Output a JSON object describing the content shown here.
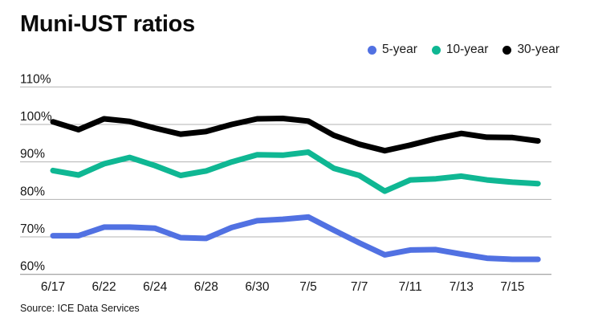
{
  "title": "Muni-UST ratios",
  "source": "Source: ICE Data Services",
  "colors": {
    "five_year": "#5171e2",
    "ten_year": "#0fb793",
    "thirty_year": "#000000",
    "gridline": "#b3b3b3",
    "baseline": "#8c8c8c",
    "axis_text": "#161616",
    "title_text": "#0b0b0b"
  },
  "chart_data": {
    "type": "line",
    "title": "Muni-UST ratios",
    "xlabel": "",
    "ylabel": "",
    "ylim": [
      60,
      110
    ],
    "grid": true,
    "legend_position": "top-right",
    "y_ticks": [
      {
        "value": 110,
        "label": "110%"
      },
      {
        "value": 100,
        "label": "100%"
      },
      {
        "value": 90,
        "label": "90%"
      },
      {
        "value": 80,
        "label": "80%"
      },
      {
        "value": 70,
        "label": "70%"
      },
      {
        "value": 60,
        "label": "60%"
      }
    ],
    "x_point_count": 20,
    "x_tick_indices": [
      0,
      2,
      4,
      6,
      8,
      10,
      12,
      14,
      16,
      18
    ],
    "x_tick_labels": [
      "6/17",
      "6/22",
      "6/24",
      "6/28",
      "6/30",
      "7/5",
      "7/7",
      "7/11",
      "7/13",
      "7/15"
    ],
    "series": [
      {
        "name": "5-year",
        "color": "#5171e2",
        "values": [
          70.3,
          70.3,
          72.6,
          72.6,
          72.3,
          69.8,
          69.6,
          72.5,
          74.3,
          74.7,
          75.3,
          71.8,
          68.4,
          65.2,
          66.5,
          66.6,
          65.4,
          64.3,
          64.0,
          64.0
        ]
      },
      {
        "name": "10-year",
        "color": "#0fb793",
        "values": [
          87.7,
          86.5,
          89.5,
          91.2,
          89.0,
          86.4,
          87.6,
          90.0,
          91.9,
          91.8,
          92.6,
          88.3,
          86.4,
          82.2,
          85.2,
          85.5,
          86.2,
          85.2,
          84.6,
          84.2
        ]
      },
      {
        "name": "30-year",
        "color": "#000000",
        "values": [
          100.7,
          98.6,
          101.5,
          100.8,
          99.0,
          97.4,
          98.1,
          100.0,
          101.5,
          101.6,
          100.9,
          97.1,
          94.7,
          93.0,
          94.5,
          96.2,
          97.6,
          96.6,
          96.5,
          95.6
        ]
      }
    ]
  }
}
